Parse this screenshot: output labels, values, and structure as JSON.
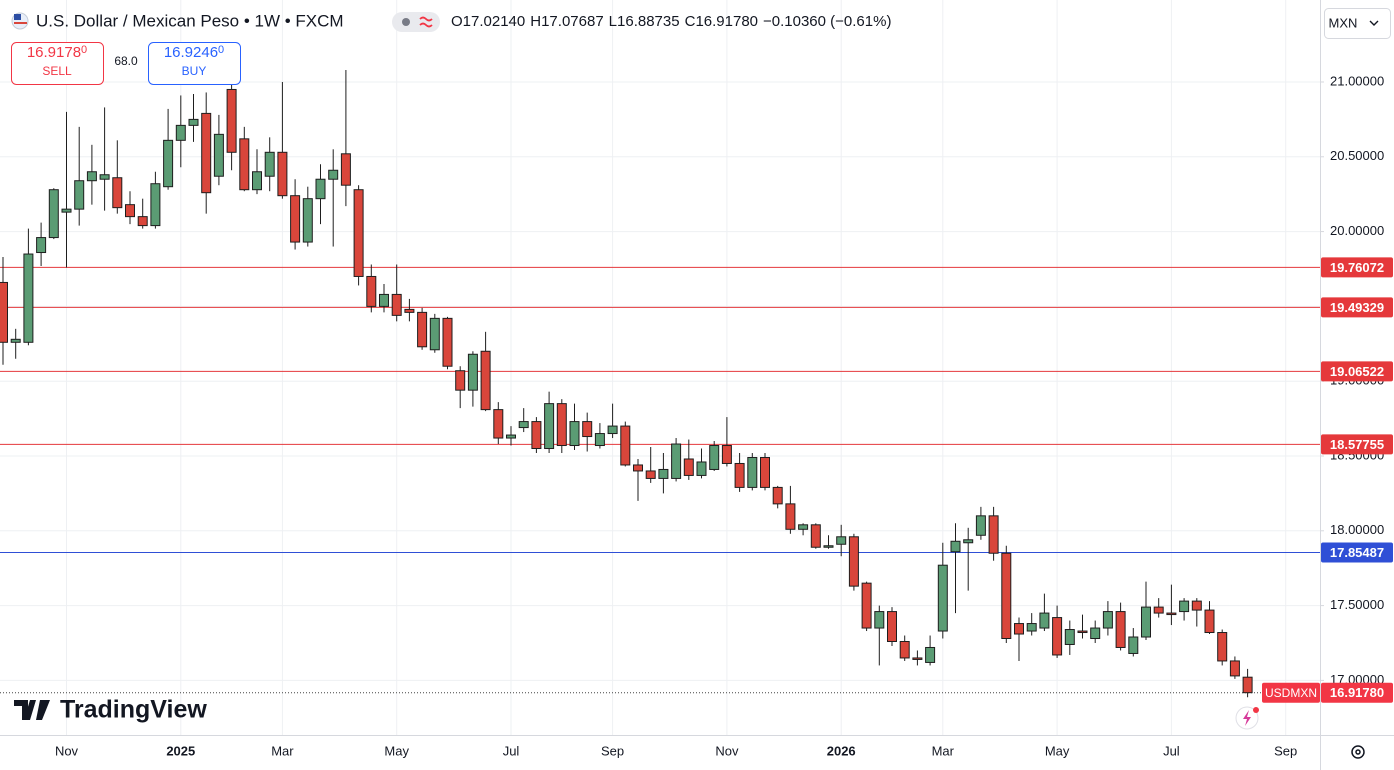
{
  "header": {
    "title": "U.S. Dollar / Mexican Peso • 1W • FXCM",
    "ohlc": [
      {
        "key": "O",
        "value": "17.02140"
      },
      {
        "key": "H",
        "value": "17.07687"
      },
      {
        "key": "L",
        "value": "16.88735"
      },
      {
        "key": "C",
        "value": "16.91780"
      }
    ],
    "change": "−0.10360 (−0.61%)"
  },
  "trade": {
    "sell": {
      "price": "16.9178",
      "pip": "0",
      "label": "SELL"
    },
    "spread": "68.0",
    "buy": {
      "price": "16.9246",
      "pip": "0",
      "label": "BUY"
    }
  },
  "currency": "MXN",
  "logo": "TradingView",
  "chart_data": {
    "type": "candlestick",
    "symbol": "USDMXN",
    "up_color": "#5b9c74",
    "down_color": "#d9463b",
    "outline_color": "#1e1e1e",
    "categories": [
      null,
      null,
      null,
      null,
      null,
      "Nov",
      null,
      null,
      null,
      null,
      null,
      null,
      null,
      null,
      "2025",
      null,
      null,
      null,
      null,
      null,
      null,
      null,
      "Mar",
      null,
      null,
      null,
      null,
      null,
      null,
      null,
      null,
      "May",
      null,
      null,
      null,
      null,
      null,
      null,
      null,
      null,
      "Jul",
      null,
      null,
      null,
      null,
      null,
      null,
      null,
      "Sep",
      null,
      null,
      null,
      null,
      null,
      null,
      null,
      null,
      "Nov",
      null,
      null,
      null,
      null,
      null,
      null,
      null,
      null,
      "2026",
      null,
      null,
      null,
      null,
      null,
      null,
      null,
      "Mar",
      null,
      null,
      null,
      null,
      null,
      null,
      null,
      null,
      "May",
      null,
      null,
      null,
      null,
      null,
      null,
      null,
      null,
      "Jul",
      null,
      null,
      null,
      null,
      null,
      null,
      null,
      null,
      "Sep",
      null,
      null
    ],
    "open": [
      19.66,
      19.26,
      19.26,
      19.86,
      19.96,
      20.13,
      20.15,
      20.34,
      20.35,
      20.36,
      20.18,
      20.1,
      20.04,
      20.3,
      20.61,
      20.71,
      20.79,
      20.37,
      20.95,
      20.62,
      20.28,
      20.37,
      20.53,
      20.24,
      19.93,
      20.22,
      20.35,
      20.52,
      20.28,
      19.7,
      19.5,
      19.58,
      19.48,
      19.46,
      19.21,
      19.42,
      19.07,
      18.94,
      19.2,
      18.81,
      18.62,
      18.69,
      18.73,
      18.55,
      18.85,
      18.57,
      18.73,
      18.57,
      18.65,
      18.7,
      18.44,
      18.4,
      18.35,
      18.35,
      18.48,
      18.37,
      18.41,
      18.57,
      18.45,
      18.29,
      18.49,
      18.29,
      18.18,
      18.01,
      18.04,
      17.89,
      17.91,
      17.96,
      17.65,
      17.35,
      17.46,
      17.26,
      17.15,
      17.12,
      17.33,
      17.86,
      17.92,
      17.97,
      18.1,
      17.85,
      17.38,
      17.33,
      17.35,
      17.42,
      17.24,
      17.33,
      17.28,
      17.35,
      17.46,
      17.18,
      17.29,
      17.49,
      17.45,
      17.46,
      17.53,
      17.47,
      17.32,
      17.13,
      17.0214,
      null,
      null,
      null,
      null,
      null
    ],
    "high": [
      19.83,
      19.35,
      20.02,
      20.06,
      20.29,
      20.8,
      20.7,
      20.58,
      20.83,
      20.61,
      20.27,
      20.22,
      20.4,
      20.82,
      20.91,
      20.92,
      20.93,
      20.78,
      21.05,
      20.7,
      20.55,
      20.63,
      21.0,
      20.35,
      20.3,
      20.45,
      20.55,
      21.08,
      20.31,
      19.78,
      19.65,
      19.78,
      19.55,
      19.49,
      19.45,
      19.43,
      19.1,
      19.2,
      19.33,
      18.86,
      18.7,
      18.82,
      18.76,
      18.93,
      18.88,
      18.85,
      18.79,
      18.72,
      18.85,
      18.73,
      18.48,
      18.56,
      18.52,
      18.62,
      18.61,
      18.55,
      18.6,
      18.76,
      18.52,
      18.52,
      18.52,
      18.3,
      18.3,
      18.05,
      18.05,
      17.97,
      18.04,
      17.98,
      17.66,
      17.5,
      17.49,
      17.3,
      17.2,
      17.3,
      17.92,
      18.05,
      18.02,
      18.16,
      18.16,
      17.9,
      17.42,
      17.45,
      17.58,
      17.5,
      17.4,
      17.44,
      17.4,
      17.53,
      17.52,
      17.35,
      17.66,
      17.55,
      17.64,
      17.55,
      17.55,
      17.53,
      17.34,
      17.16,
      17.07687,
      null,
      null,
      null,
      null,
      null
    ],
    "low": [
      19.11,
      19.15,
      19.24,
      19.77,
      19.95,
      19.76,
      20.04,
      20.18,
      20.14,
      20.12,
      20.05,
      20.02,
      20.02,
      20.28,
      20.43,
      20.6,
      20.12,
      20.31,
      20.41,
      20.27,
      20.25,
      20.27,
      20.22,
      19.88,
      19.9,
      20.05,
      19.9,
      20.17,
      19.64,
      19.46,
      19.46,
      19.4,
      19.4,
      19.21,
      19.19,
      19.08,
      18.82,
      18.83,
      18.8,
      18.58,
      18.57,
      18.66,
      18.52,
      18.52,
      18.52,
      18.54,
      18.53,
      18.55,
      18.62,
      18.43,
      18.2,
      18.32,
      18.25,
      18.33,
      18.34,
      18.35,
      18.4,
      18.43,
      18.26,
      18.27,
      18.27,
      18.15,
      17.98,
      17.97,
      17.88,
      17.88,
      17.83,
      17.6,
      17.33,
      17.1,
      17.23,
      17.13,
      17.1,
      17.1,
      17.28,
      17.45,
      17.6,
      17.94,
      17.8,
      17.25,
      17.13,
      17.3,
      17.33,
      17.15,
      17.17,
      17.28,
      17.25,
      17.3,
      17.2,
      17.16,
      17.27,
      17.42,
      17.37,
      17.4,
      17.36,
      17.31,
      17.1,
      17.01,
      16.88735,
      null,
      null,
      null,
      null,
      null
    ],
    "close": [
      19.26,
      19.28,
      19.85,
      19.96,
      20.28,
      20.15,
      20.34,
      20.4,
      20.38,
      20.16,
      20.1,
      20.04,
      20.32,
      20.61,
      20.71,
      20.75,
      20.26,
      20.65,
      20.53,
      20.28,
      20.4,
      20.53,
      20.24,
      19.93,
      20.22,
      20.35,
      20.41,
      20.31,
      19.7,
      19.5,
      19.58,
      19.44,
      19.46,
      19.23,
      19.42,
      19.1,
      18.94,
      19.18,
      18.81,
      18.62,
      18.64,
      18.73,
      18.55,
      18.85,
      18.57,
      18.73,
      18.63,
      18.65,
      18.7,
      18.44,
      18.4,
      18.35,
      18.41,
      18.58,
      18.37,
      18.46,
      18.57,
      18.45,
      18.29,
      18.49,
      18.29,
      18.18,
      18.01,
      18.04,
      17.89,
      17.9,
      17.96,
      17.63,
      17.35,
      17.46,
      17.26,
      17.15,
      17.14,
      17.22,
      17.77,
      17.93,
      17.94,
      18.1,
      17.85,
      17.28,
      17.31,
      17.38,
      17.45,
      17.17,
      17.34,
      17.32,
      17.35,
      17.46,
      17.22,
      17.29,
      17.49,
      17.45,
      17.44,
      17.53,
      17.47,
      17.32,
      17.13,
      17.03,
      16.9178,
      null,
      null,
      null,
      null,
      null
    ],
    "ylim": [
      16.635,
      21.548
    ],
    "yticks": [
      {
        "value": 17,
        "label": "17.00000"
      },
      {
        "value": 17.5,
        "label": "17.50000"
      },
      {
        "value": 18,
        "label": "18.00000"
      },
      {
        "value": 18.5,
        "label": "18.50000"
      },
      {
        "value": 19,
        "label": "19.00000"
      },
      {
        "value": 19.5,
        "label": "19.50000"
      },
      {
        "value": 20,
        "label": "20.00000"
      },
      {
        "value": 20.5,
        "label": "20.50000"
      },
      {
        "value": 21,
        "label": "21.00000"
      }
    ],
    "grid": true,
    "levels": [
      {
        "value": 19.76072,
        "color": "#e5383b"
      },
      {
        "value": 19.49329,
        "color": "#e5383b"
      },
      {
        "value": 19.06522,
        "color": "#e5383b"
      },
      {
        "value": 18.57755,
        "color": "#e5383b"
      },
      {
        "value": 17.85487,
        "color": "#2f4fd6"
      }
    ],
    "last_price": {
      "value": 16.9178,
      "label": "16.91780",
      "color": "#f23645"
    }
  }
}
